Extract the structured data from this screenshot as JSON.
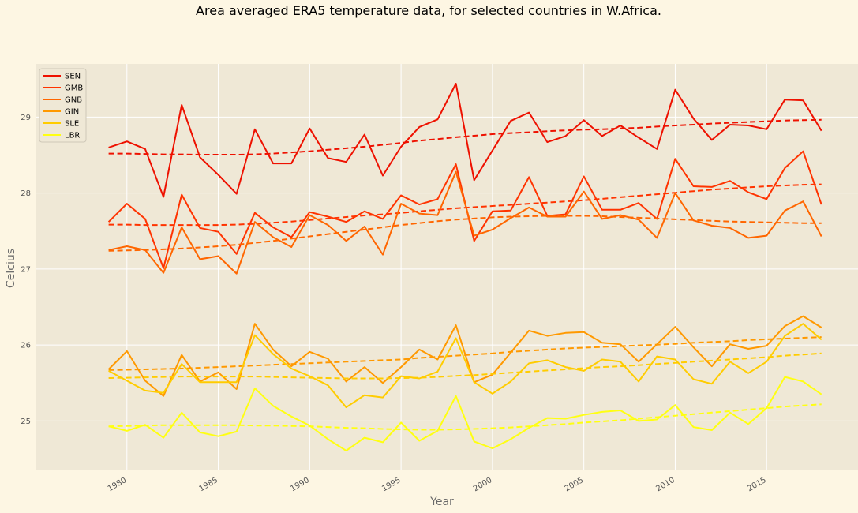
{
  "chart_data": {
    "type": "line",
    "title": "Area averaged ERA5 temperature data, for selected countries in W.Africa.",
    "xlabel": "Year",
    "ylabel": "Celcius",
    "xlim": [
      1975,
      2020
    ],
    "ylim": [
      24.35,
      29.7
    ],
    "x_ticks": [
      1980,
      1985,
      1990,
      1995,
      2000,
      2005,
      2010,
      2015
    ],
    "y_ticks": [
      25,
      26,
      27,
      28,
      29
    ],
    "grid": true,
    "legend_position": "top-left",
    "x": [
      1979,
      1980,
      1981,
      1982,
      1983,
      1984,
      1985,
      1986,
      1987,
      1988,
      1989,
      1990,
      1991,
      1992,
      1993,
      1994,
      1995,
      1996,
      1997,
      1998,
      1999,
      2000,
      2001,
      2002,
      2003,
      2004,
      2005,
      2006,
      2007,
      2008,
      2009,
      2010,
      2011,
      2012,
      2013,
      2014,
      2015,
      2016,
      2017,
      2018
    ],
    "series": [
      {
        "name": "SEN",
        "color": "#ee1100",
        "values": [
          28.6,
          28.68,
          28.58,
          27.95,
          29.16,
          28.47,
          28.24,
          27.99,
          28.84,
          28.39,
          28.39,
          28.85,
          28.46,
          28.41,
          28.77,
          28.23,
          28.61,
          28.87,
          28.97,
          29.44,
          28.17,
          28.56,
          28.95,
          29.06,
          28.67,
          28.75,
          28.96,
          28.75,
          28.89,
          28.73,
          28.58,
          29.36,
          28.98,
          28.7,
          28.9,
          28.89,
          28.84,
          29.23,
          29.22,
          28.82
        ],
        "trend": [
          28.52,
          28.52,
          28.515,
          28.51,
          28.51,
          28.505,
          28.505,
          28.505,
          28.51,
          28.52,
          28.535,
          28.55,
          28.57,
          28.59,
          28.61,
          28.635,
          28.66,
          28.69,
          28.71,
          28.735,
          28.755,
          28.775,
          28.79,
          28.8,
          28.815,
          28.825,
          28.835,
          28.84,
          28.85,
          28.86,
          28.875,
          28.89,
          28.9,
          28.915,
          28.925,
          28.935,
          28.945,
          28.955,
          28.96,
          28.965
        ]
      },
      {
        "name": "GMB",
        "color": "#ff3300",
        "values": [
          27.62,
          27.86,
          27.66,
          27.01,
          27.98,
          27.54,
          27.49,
          27.2,
          27.74,
          27.55,
          27.42,
          27.75,
          27.69,
          27.62,
          27.76,
          27.66,
          27.97,
          27.85,
          27.92,
          28.38,
          27.37,
          27.76,
          27.77,
          28.21,
          27.7,
          27.72,
          28.22,
          27.78,
          27.78,
          27.87,
          27.66,
          28.45,
          28.09,
          28.08,
          28.16,
          28.01,
          27.92,
          28.33,
          28.55,
          27.85
        ],
        "trend": [
          27.585,
          27.585,
          27.58,
          27.58,
          27.58,
          27.58,
          27.58,
          27.585,
          27.595,
          27.61,
          27.625,
          27.645,
          27.665,
          27.685,
          27.705,
          27.72,
          27.74,
          27.76,
          27.78,
          27.8,
          27.815,
          27.83,
          27.845,
          27.86,
          27.875,
          27.89,
          27.905,
          27.925,
          27.945,
          27.965,
          27.985,
          28.005,
          28.025,
          28.045,
          28.06,
          28.075,
          28.09,
          28.1,
          28.11,
          28.115
        ]
      },
      {
        "name": "GNB",
        "color": "#ff6600",
        "values": [
          27.25,
          27.3,
          27.25,
          26.95,
          27.55,
          27.13,
          27.17,
          26.94,
          27.62,
          27.42,
          27.29,
          27.71,
          27.58,
          27.37,
          27.56,
          27.19,
          27.86,
          27.73,
          27.71,
          28.28,
          27.44,
          27.52,
          27.67,
          27.81,
          27.69,
          27.69,
          28.02,
          27.66,
          27.71,
          27.65,
          27.41,
          28.0,
          27.64,
          27.57,
          27.54,
          27.41,
          27.44,
          27.77,
          27.89,
          27.43
        ],
        "trend": [
          27.24,
          27.245,
          27.25,
          27.26,
          27.27,
          27.285,
          27.3,
          27.32,
          27.345,
          27.37,
          27.4,
          27.43,
          27.46,
          27.49,
          27.52,
          27.55,
          27.58,
          27.605,
          27.63,
          27.65,
          27.665,
          27.68,
          27.69,
          27.695,
          27.7,
          27.7,
          27.7,
          27.695,
          27.685,
          27.675,
          27.665,
          27.655,
          27.645,
          27.635,
          27.625,
          27.62,
          27.615,
          27.61,
          27.605,
          27.605
        ]
      },
      {
        "name": "GIN",
        "color": "#ff9900",
        "values": [
          25.68,
          25.92,
          25.53,
          25.33,
          25.87,
          25.52,
          25.64,
          25.42,
          26.28,
          25.94,
          25.72,
          25.91,
          25.82,
          25.52,
          25.71,
          25.5,
          25.71,
          25.94,
          25.81,
          26.26,
          25.51,
          25.61,
          25.9,
          26.19,
          26.12,
          26.16,
          26.17,
          26.03,
          26.01,
          25.78,
          26.01,
          26.24,
          25.97,
          25.72,
          26.01,
          25.95,
          25.99,
          26.25,
          26.38,
          26.23
        ],
        "trend": [
          25.67,
          25.675,
          25.68,
          25.685,
          25.69,
          25.7,
          25.71,
          25.72,
          25.73,
          25.74,
          25.75,
          25.76,
          25.77,
          25.78,
          25.79,
          25.8,
          25.81,
          25.83,
          25.845,
          25.86,
          25.875,
          25.89,
          25.91,
          25.925,
          25.94,
          25.955,
          25.965,
          25.975,
          25.985,
          25.995,
          26.005,
          26.015,
          26.03,
          26.04,
          26.05,
          26.065,
          26.075,
          26.085,
          26.095,
          26.105
        ]
      },
      {
        "name": "SLE",
        "color": "#ffcc00",
        "values": [
          25.66,
          25.53,
          25.4,
          25.37,
          25.75,
          25.51,
          25.51,
          25.51,
          26.13,
          25.88,
          25.69,
          25.59,
          25.47,
          25.18,
          25.34,
          25.31,
          25.59,
          25.56,
          25.65,
          26.09,
          25.51,
          25.36,
          25.52,
          25.76,
          25.8,
          25.71,
          25.66,
          25.81,
          25.78,
          25.52,
          25.85,
          25.81,
          25.55,
          25.49,
          25.78,
          25.63,
          25.78,
          26.12,
          26.28,
          26.07
        ],
        "trend": [
          25.565,
          25.57,
          25.575,
          25.58,
          25.585,
          25.585,
          25.585,
          25.585,
          25.585,
          25.58,
          25.575,
          25.57,
          25.565,
          25.56,
          25.56,
          25.56,
          25.565,
          25.57,
          25.58,
          25.595,
          25.605,
          25.62,
          25.635,
          25.65,
          25.665,
          25.68,
          25.695,
          25.71,
          25.72,
          25.735,
          25.75,
          25.765,
          25.78,
          25.795,
          25.81,
          25.825,
          25.84,
          25.86,
          25.875,
          25.89
        ]
      },
      {
        "name": "LBR",
        "color": "#ffff11",
        "values": [
          24.93,
          24.87,
          24.95,
          24.78,
          25.11,
          24.85,
          24.8,
          24.86,
          25.43,
          25.2,
          25.06,
          24.94,
          24.76,
          24.61,
          24.78,
          24.72,
          24.98,
          24.74,
          24.87,
          25.33,
          24.73,
          24.64,
          24.76,
          24.91,
          25.04,
          25.03,
          25.08,
          25.12,
          25.14,
          25.0,
          25.02,
          25.21,
          24.92,
          24.88,
          25.11,
          24.96,
          25.17,
          25.58,
          25.52,
          25.35
        ],
        "trend": [
          24.93,
          24.935,
          24.94,
          24.945,
          24.945,
          24.945,
          24.945,
          24.945,
          24.94,
          24.94,
          24.935,
          24.93,
          24.92,
          24.91,
          24.905,
          24.895,
          24.89,
          24.885,
          24.885,
          24.89,
          24.895,
          24.905,
          24.915,
          24.93,
          24.945,
          24.96,
          24.98,
          24.995,
          25.01,
          25.03,
          25.05,
          25.07,
          25.09,
          25.11,
          25.13,
          25.15,
          25.17,
          25.19,
          25.205,
          25.22
        ]
      }
    ]
  }
}
